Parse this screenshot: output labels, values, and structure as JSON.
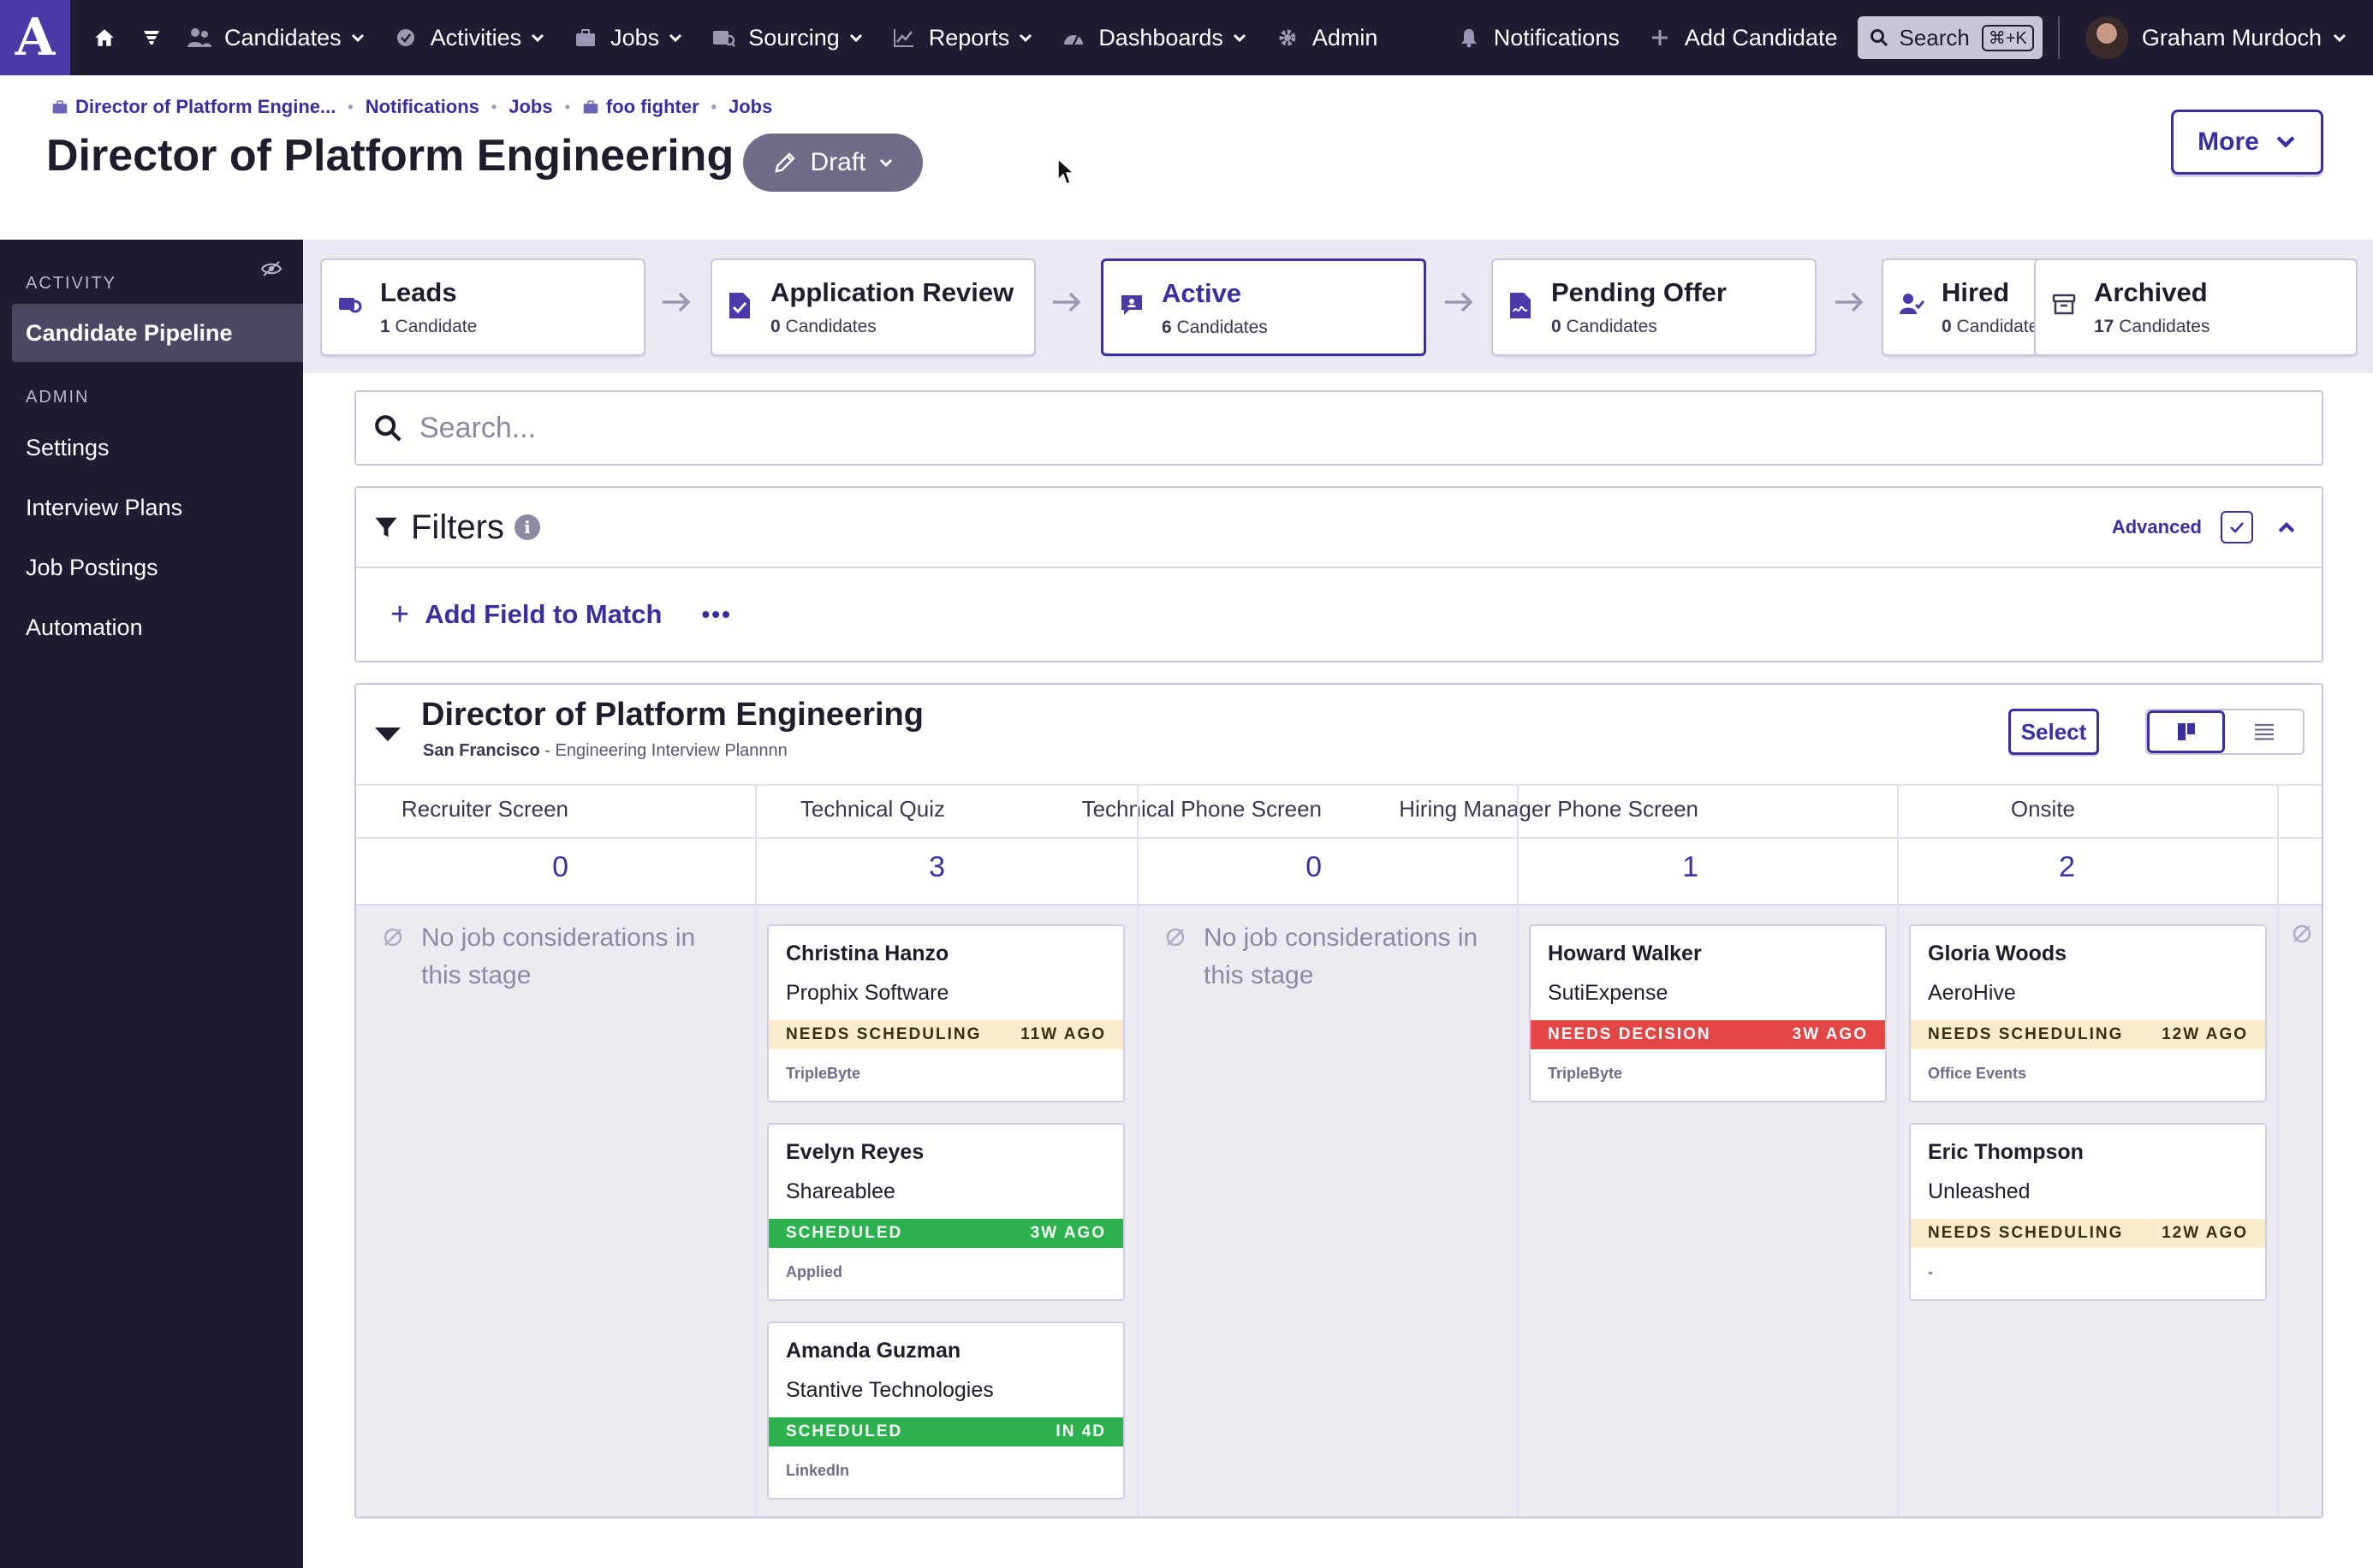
{
  "topnav": {
    "logo": "A",
    "items": [
      {
        "label": "Candidates"
      },
      {
        "label": "Activities"
      },
      {
        "label": "Jobs"
      },
      {
        "label": "Sourcing"
      },
      {
        "label": "Reports"
      },
      {
        "label": "Dashboards"
      },
      {
        "label": "Admin"
      }
    ],
    "notifications": "Notifications",
    "add_candidate": "Add Candidate",
    "search": "Search",
    "shortcut": "⌘+K",
    "user": "Graham Murdoch"
  },
  "breadcrumb": [
    "Director of Platform Engine...",
    "Notifications",
    "Jobs",
    "foo fighter",
    "Jobs"
  ],
  "page": {
    "title": "Director of Platform Engineering",
    "status": "Draft",
    "more": "More"
  },
  "sidebar": {
    "activity_section": "ACTIVITY",
    "candidate_pipeline": "Candidate Pipeline",
    "admin_section": "ADMIN",
    "admin_items": [
      "Settings",
      "Interview Plans",
      "Job Postings",
      "Automation"
    ]
  },
  "pipeline": [
    {
      "name": "Leads",
      "count": "1",
      "unit": "Candidate"
    },
    {
      "name": "Application Review",
      "count": "0",
      "unit": "Candidates"
    },
    {
      "name": "Active",
      "count": "6",
      "unit": "Candidates"
    },
    {
      "name": "Pending Offer",
      "count": "0",
      "unit": "Candidates"
    },
    {
      "name": "Hired",
      "count": "0",
      "unit": "Candidates"
    },
    {
      "name": "Archived",
      "count": "17",
      "unit": "Candidates"
    }
  ],
  "search": {
    "placeholder": "Search..."
  },
  "filters": {
    "title": "Filters",
    "info": "i",
    "advanced": "Advanced",
    "add_field": "Add Field to Match",
    "more": "•••"
  },
  "board": {
    "title": "Director of Platform Engineering",
    "location": "San Francisco",
    "plan": " - Engineering Interview Plannnn",
    "select": "Select",
    "empty_message_line1": "No job considerations in",
    "empty_message_line2": "this stage",
    "columns": [
      {
        "name": "Recruiter Screen",
        "count": "0"
      },
      {
        "name": "Technical Quiz",
        "count": "3"
      },
      {
        "name": "Technical Phone Screen",
        "count": "0"
      },
      {
        "name": "Hiring Manager Phone Screen",
        "count": "1"
      },
      {
        "name": "Onsite",
        "count": "2"
      }
    ],
    "cards": [
      {
        "name": "Christina Hanzo",
        "company": "Prophix Software",
        "status": "NEEDS SCHEDULING",
        "time": "11W AGO",
        "source": "TripleByte"
      },
      {
        "name": "Evelyn Reyes",
        "company": "Shareablee",
        "status": "SCHEDULED",
        "time": "3W AGO",
        "source": "Applied"
      },
      {
        "name": "Amanda Guzman",
        "company": "Stantive Technologies",
        "status": "SCHEDULED",
        "time": "IN 4D",
        "source": "LinkedIn"
      },
      {
        "name": "Howard Walker",
        "company": "SutiExpense",
        "status": "NEEDS DECISION",
        "time": "3W AGO",
        "source": "TripleByte"
      },
      {
        "name": "Gloria Woods",
        "company": "AeroHive",
        "status": "NEEDS SCHEDULING",
        "time": "12W AGO",
        "source": "Office Events"
      },
      {
        "name": "Eric Thompson",
        "company": "Unleashed",
        "status": "NEEDS SCHEDULING",
        "time": "12W AGO",
        "source": "-"
      }
    ]
  },
  "colors": {
    "nav_bg": "#1e1b33",
    "accent": "#3b2fa0",
    "scheduled": "#2bb24c",
    "needs_decision": "#e24646",
    "needs_scheduling": "#fbeccb"
  }
}
